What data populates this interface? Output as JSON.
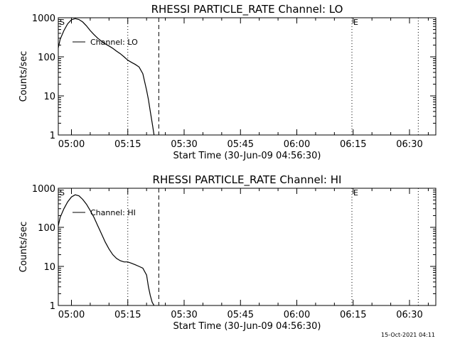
{
  "footer": {
    "timestamp": "15-Oct-2021 04:11"
  },
  "chart_data": [
    {
      "type": "line",
      "title": "RHESSI PARTICLE_RATE Channel: LO",
      "xlabel": "Start Time (30-Jun-09 04:56:30)",
      "ylabel": "Counts/sec",
      "xlim": [
        "04:56:30",
        "06:37:00"
      ],
      "ylim": [
        1,
        1000
      ],
      "yscale": "log",
      "xticks": [
        "05:00",
        "05:15",
        "05:30",
        "05:45",
        "06:00",
        "06:15",
        "06:30"
      ],
      "yticks": [
        "1",
        "10",
        "100",
        "1000"
      ],
      "legend": {
        "label": "Channel: LO",
        "placement": "top-left"
      },
      "markers": [
        {
          "label": "S",
          "time": "04:56:30",
          "style": "none"
        },
        {
          "label": "",
          "time": "05:15:00",
          "style": "dotted"
        },
        {
          "label": "",
          "time": "05:23:15",
          "style": "dashed"
        },
        {
          "label": "E",
          "time": "06:14:40",
          "style": "dotted"
        },
        {
          "label": "",
          "time": "06:32:20",
          "style": "dotted"
        }
      ],
      "series": [
        {
          "name": "Channel: LO",
          "x": [
            "04:56:30",
            "04:57:00",
            "04:58:00",
            "04:59:00",
            "05:00:00",
            "05:01:00",
            "05:02:00",
            "05:03:00",
            "05:04:00",
            "05:05:00",
            "05:06:00",
            "05:07:00",
            "05:08:00",
            "05:09:00",
            "05:10:00",
            "05:11:00",
            "05:12:00",
            "05:13:00",
            "05:14:00",
            "05:15:00",
            "05:16:00",
            "05:17:00",
            "05:18:00",
            "05:19:00",
            "05:20:00",
            "05:20:30",
            "05:21:00",
            "05:21:30",
            "05:22:00"
          ],
          "values": [
            170,
            280,
            470,
            700,
            890,
            950,
            900,
            780,
            620,
            470,
            370,
            300,
            250,
            215,
            190,
            165,
            140,
            120,
            100,
            82,
            72,
            64,
            55,
            37,
            14,
            8,
            4,
            2,
            1
          ]
        }
      ]
    },
    {
      "type": "line",
      "title": "RHESSI PARTICLE_RATE Channel: HI",
      "xlabel": "Start Time (30-Jun-09 04:56:30)",
      "ylabel": "Counts/sec",
      "xlim": [
        "04:56:30",
        "06:37:00"
      ],
      "ylim": [
        1,
        1000
      ],
      "yscale": "log",
      "xticks": [
        "05:00",
        "05:15",
        "05:30",
        "05:45",
        "06:00",
        "06:15",
        "06:30"
      ],
      "yticks": [
        "1",
        "10",
        "100",
        "1000"
      ],
      "legend": {
        "label": "Channel: HI",
        "placement": "top-left"
      },
      "markers": [
        {
          "label": "S",
          "time": "04:56:30",
          "style": "none"
        },
        {
          "label": "",
          "time": "05:15:00",
          "style": "dotted"
        },
        {
          "label": "",
          "time": "05:23:15",
          "style": "dashed"
        },
        {
          "label": "E",
          "time": "06:14:40",
          "style": "dotted"
        },
        {
          "label": "",
          "time": "06:32:20",
          "style": "dotted"
        }
      ],
      "series": [
        {
          "name": "Channel: HI",
          "x": [
            "04:56:30",
            "04:57:00",
            "04:58:00",
            "04:59:00",
            "05:00:00",
            "05:01:00",
            "05:02:00",
            "05:03:00",
            "05:04:00",
            "05:05:00",
            "05:06:00",
            "05:07:00",
            "05:08:00",
            "05:09:00",
            "05:10:00",
            "05:11:00",
            "05:12:00",
            "05:13:00",
            "05:14:00",
            "05:15:00",
            "05:16:00",
            "05:17:00",
            "05:18:00",
            "05:19:00",
            "05:20:00",
            "05:20:30",
            "05:21:00",
            "05:21:30",
            "05:22:00"
          ],
          "values": [
            110,
            180,
            300,
            450,
            600,
            680,
            640,
            520,
            390,
            270,
            180,
            110,
            68,
            42,
            28,
            20,
            16,
            14,
            13,
            13,
            12,
            11,
            10,
            9,
            6,
            3,
            1.8,
            1.2,
            1
          ]
        }
      ]
    }
  ]
}
